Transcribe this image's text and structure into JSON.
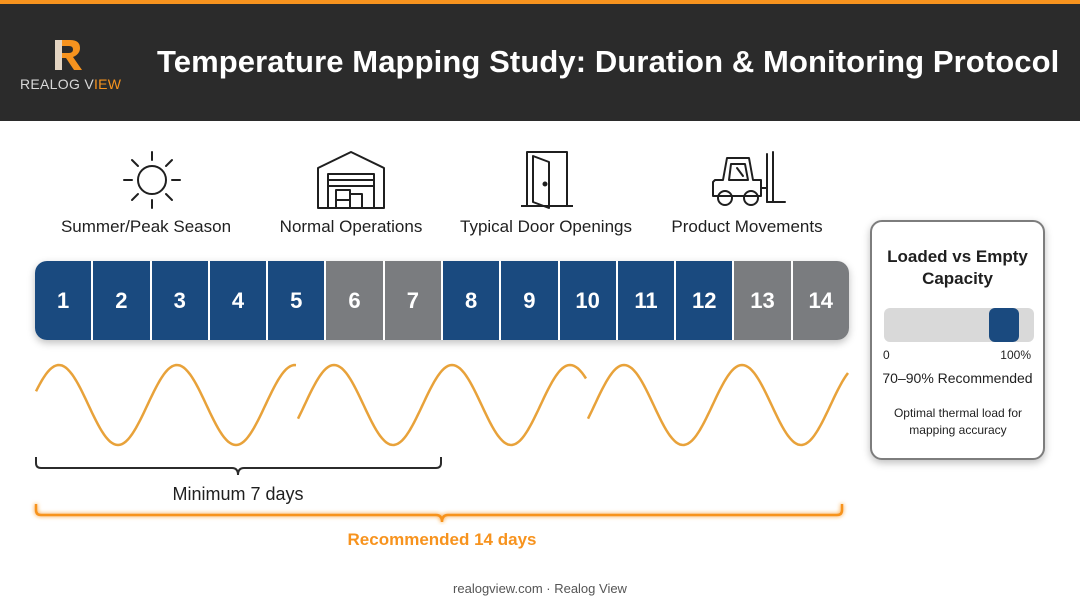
{
  "header": {
    "logo_text_main": "REALOG V",
    "logo_text_accent": "IEW",
    "title": "Temperature Mapping Study: Duration & Monitoring Protocol"
  },
  "features": [
    {
      "label": "Summer/Peak Season",
      "icon": "sun-icon"
    },
    {
      "label": "Normal Operations",
      "icon": "warehouse-icon"
    },
    {
      "label": "Typical Door Openings",
      "icon": "door-icon"
    },
    {
      "label": "Product Movements",
      "icon": "forklift-icon"
    }
  ],
  "days": [
    {
      "num": "1",
      "status": "active"
    },
    {
      "num": "2",
      "status": "active"
    },
    {
      "num": "3",
      "status": "active"
    },
    {
      "num": "4",
      "status": "active"
    },
    {
      "num": "5",
      "status": "active"
    },
    {
      "num": "6",
      "status": "idle"
    },
    {
      "num": "7",
      "status": "idle"
    },
    {
      "num": "8",
      "status": "active"
    },
    {
      "num": "9",
      "status": "active"
    },
    {
      "num": "10",
      "status": "active"
    },
    {
      "num": "11",
      "status": "active"
    },
    {
      "num": "12",
      "status": "active"
    },
    {
      "num": "13",
      "status": "idle"
    },
    {
      "num": "14",
      "status": "idle"
    }
  ],
  "durations": {
    "minimum_label": "Minimum 7 days",
    "recommended_label": "Recommended 14 days"
  },
  "card": {
    "title": "Loaded vs Empty Capacity",
    "gauge_min_label": "0",
    "gauge_max_label": "100%",
    "recommended_range": [
      0.7,
      0.9
    ],
    "recommended_label": "70–90% Recommended",
    "note": "Optimal thermal load for mapping accuracy"
  },
  "colors": {
    "active_day": "#1a4a7f",
    "idle_day": "#7a7c7f",
    "accent": "#f7931e",
    "header_bg": "#2b2b2b"
  },
  "footer": "realogview.com · Realog View"
}
